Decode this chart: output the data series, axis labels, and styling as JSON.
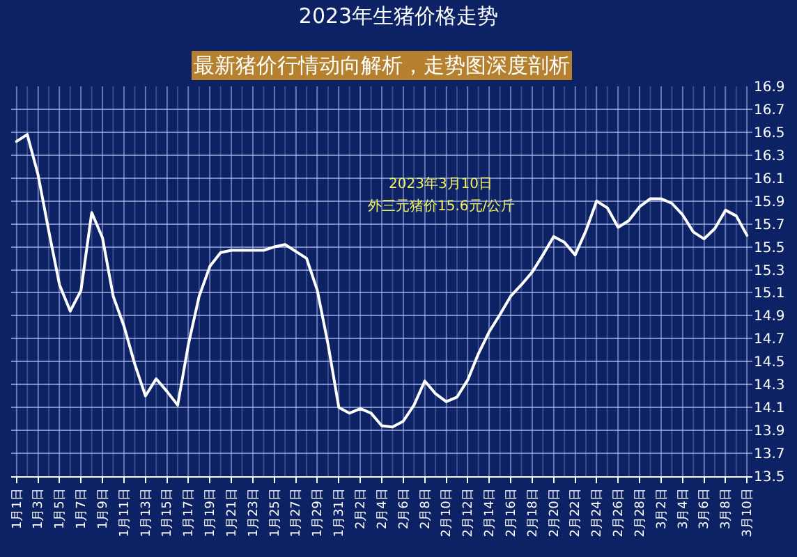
{
  "chart_data": {
    "type": "line",
    "title": "2023年生猪价格走势",
    "annotations": [
      "最新猪价行情动向解析，走势图深度剖析",
      "2023年3月10日",
      "外三元猪价15.6元/公斤"
    ],
    "categories": [
      "1月1日",
      null,
      "1月3日",
      null,
      "1月5日",
      null,
      "1月7日",
      null,
      "1月9日",
      null,
      "1月11日",
      null,
      "1月13日",
      null,
      "1月15日",
      null,
      "1月17日",
      null,
      "1月19日",
      null,
      "1月21日",
      null,
      "1月23日",
      null,
      "1月25日",
      null,
      "1月27日",
      null,
      "1月29日",
      null,
      "1月31日",
      null,
      "2月2日",
      null,
      "2月4日",
      null,
      "2月6日",
      null,
      "2月8日",
      null,
      "2月10日",
      null,
      "2月12日",
      null,
      "2月14日",
      null,
      "2月16日",
      null,
      "2月18日",
      null,
      "2月20日",
      null,
      "2月22日",
      null,
      "2月24日",
      null,
      "2月26日",
      null,
      "2月28日",
      null,
      "3月2日",
      null,
      "3月4日",
      null,
      "3月6日",
      null,
      "3月8日",
      null,
      "3月10日"
    ],
    "series": [
      {
        "color": "#ffffff",
        "values": [
          16.42,
          16.48,
          16.13,
          15.64,
          15.17,
          14.94,
          15.12,
          15.8,
          15.58,
          15.07,
          14.81,
          14.48,
          14.2,
          14.35,
          14.24,
          14.12,
          14.65,
          15.07,
          15.33,
          15.45,
          15.47,
          15.47,
          15.47,
          15.47,
          15.5,
          15.52,
          15.46,
          15.4,
          15.12,
          14.65,
          14.1,
          14.05,
          14.09,
          14.05,
          13.94,
          13.93,
          13.98,
          14.12,
          14.33,
          14.22,
          14.15,
          14.19,
          14.34,
          14.57,
          14.76,
          14.91,
          15.07,
          15.17,
          15.28,
          15.43,
          15.59,
          15.54,
          15.43,
          15.64,
          15.9,
          15.84,
          15.67,
          15.73,
          15.85,
          15.92,
          15.92,
          15.88,
          15.78,
          15.63,
          15.57,
          15.66,
          15.82,
          15.77,
          15.6
        ]
      }
    ],
    "ylim": [
      13.5,
      16.9
    ],
    "yticks": [
      13.5,
      13.7,
      13.9,
      14.1,
      14.3,
      14.5,
      14.7,
      14.9,
      15.1,
      15.3,
      15.5,
      15.7,
      15.9,
      16.1,
      16.3,
      16.5,
      16.7,
      16.9
    ],
    "grid": true,
    "marker": "none",
    "line_style": "solid"
  }
}
